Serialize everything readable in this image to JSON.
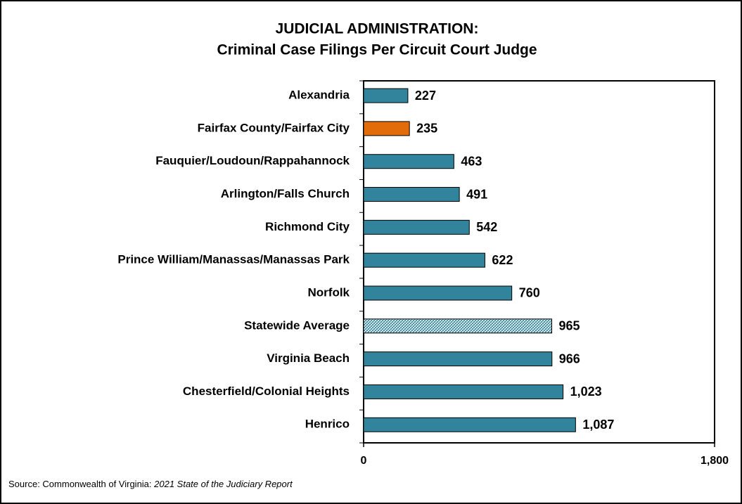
{
  "chart_data": {
    "type": "hbar",
    "title": "JUDICIAL ADMINISTRATION:",
    "subtitle": "Criminal Case Filings Per Circuit Court Judge",
    "categories": [
      "Alexandria",
      "Fairfax County/Fairfax City",
      "Fauquier/Loudoun/Rappahannock",
      "Arlington/Falls Church",
      "Richmond City",
      "Prince William/Manassas/Manassas Park",
      "Norfolk",
      "Statewide Average",
      "Virginia Beach",
      "Chesterfield/Colonial Heights",
      "Henrico"
    ],
    "values": [
      227,
      235,
      463,
      491,
      542,
      622,
      760,
      965,
      966,
      1023,
      1087
    ],
    "value_labels": [
      "227",
      "235",
      "463",
      "491",
      "542",
      "622",
      "760",
      "965",
      "966",
      "1,023",
      "1,087"
    ],
    "colors": [
      "#31849b",
      "#e36c0a",
      "#31849b",
      "#31849b",
      "#31849b",
      "#31849b",
      "#31849b",
      "#31849b",
      "#31849b",
      "#31849b",
      "#31849b"
    ],
    "patterns": [
      null,
      null,
      null,
      null,
      null,
      null,
      null,
      "hatch",
      null,
      null,
      null
    ],
    "xlim": [
      0,
      1800
    ],
    "xticks": [
      0,
      {
        "value": 1800,
        "label": "1,800"
      }
    ],
    "source_prefix": "Source: Commonwealth of Virginia: ",
    "source_title": "2021 State of the Judiciary Report"
  }
}
